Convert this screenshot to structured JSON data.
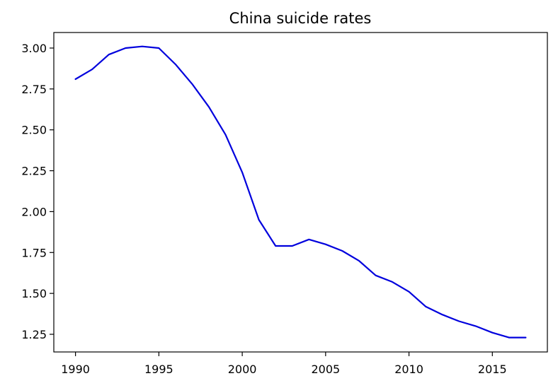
{
  "chart_data": {
    "type": "line",
    "title": "China suicide rates",
    "xlabel": "",
    "ylabel": "",
    "xlim": [
      1988.7,
      2018.3
    ],
    "ylim": [
      1.142,
      3.095
    ],
    "x_ticks": [
      1990,
      1995,
      2000,
      2005,
      2010,
      2015
    ],
    "y_ticks": [
      1.25,
      1.5,
      1.75,
      2.0,
      2.25,
      2.5,
      2.75,
      3.0
    ],
    "x_tick_labels": [
      "1990",
      "1995",
      "2000",
      "2005",
      "2010",
      "2015"
    ],
    "y_tick_labels": [
      "1.25",
      "1.50",
      "1.75",
      "2.00",
      "2.25",
      "2.50",
      "2.75",
      "3.00"
    ],
    "grid": false,
    "legend": "none",
    "series": [
      {
        "color": "#0000dd",
        "x": [
          1990,
          1991,
          1992,
          1993,
          1994,
          1995,
          1996,
          1997,
          1998,
          1999,
          2000,
          2001,
          2002,
          2003,
          2004,
          2005,
          2006,
          2007,
          2008,
          2009,
          2010,
          2011,
          2012,
          2013,
          2014,
          2015,
          2016,
          2017
        ],
        "y": [
          2.81,
          2.87,
          2.96,
          3.0,
          3.01,
          3.0,
          2.9,
          2.78,
          2.64,
          2.47,
          2.24,
          1.95,
          1.79,
          1.79,
          1.83,
          1.8,
          1.76,
          1.7,
          1.61,
          1.57,
          1.51,
          1.42,
          1.37,
          1.33,
          1.3,
          1.26,
          1.23,
          1.23
        ]
      }
    ]
  }
}
